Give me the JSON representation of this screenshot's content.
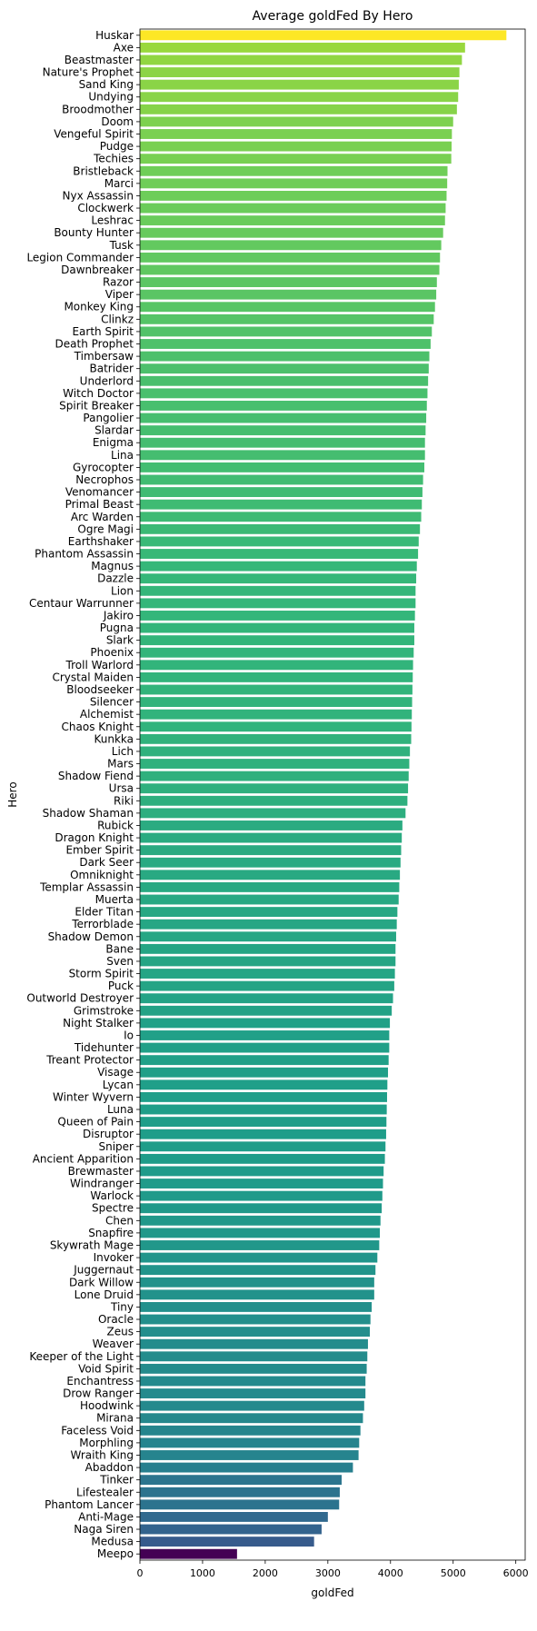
{
  "chart_data": {
    "type": "bar",
    "orientation": "horizontal",
    "title": "Average goldFed By Hero",
    "xlabel": "goldFed",
    "ylabel": "Hero",
    "xlim": [
      0,
      6150
    ],
    "xticks": [
      0,
      1000,
      2000,
      3000,
      4000,
      5000,
      6000
    ],
    "grid": false,
    "colormap": "viridis",
    "categories": [
      "Huskar",
      "Axe",
      "Beastmaster",
      "Nature's Prophet",
      "Sand King",
      "Undying",
      "Broodmother",
      "Doom",
      "Vengeful Spirit",
      "Pudge",
      "Techies",
      "Bristleback",
      "Marci",
      "Nyx Assassin",
      "Clockwerk",
      "Leshrac",
      "Bounty Hunter",
      "Tusk",
      "Legion Commander",
      "Dawnbreaker",
      "Razor",
      "Viper",
      "Monkey King",
      "Clinkz",
      "Earth Spirit",
      "Death Prophet",
      "Timbersaw",
      "Batrider",
      "Underlord",
      "Witch Doctor",
      "Spirit Breaker",
      "Pangolier",
      "Slardar",
      "Enigma",
      "Lina",
      "Gyrocopter",
      "Necrophos",
      "Venomancer",
      "Primal Beast",
      "Arc Warden",
      "Ogre Magi",
      "Earthshaker",
      "Phantom Assassin",
      "Magnus",
      "Dazzle",
      "Lion",
      "Centaur Warrunner",
      "Jakiro",
      "Pugna",
      "Slark",
      "Phoenix",
      "Troll Warlord",
      "Crystal Maiden",
      "Bloodseeker",
      "Silencer",
      "Alchemist",
      "Chaos Knight",
      "Kunkka",
      "Lich",
      "Mars",
      "Shadow Fiend",
      "Ursa",
      "Riki",
      "Shadow Shaman",
      "Rubick",
      "Dragon Knight",
      "Ember Spirit",
      "Dark Seer",
      "Omniknight",
      "Templar Assassin",
      "Muerta",
      "Elder Titan",
      "Terrorblade",
      "Shadow Demon",
      "Bane",
      "Sven",
      "Storm Spirit",
      "Puck",
      "Outworld Destroyer",
      "Grimstroke",
      "Night Stalker",
      "Io",
      "Tidehunter",
      "Treant Protector",
      "Visage",
      "Lycan",
      "Winter Wyvern",
      "Luna",
      "Queen of Pain",
      "Disruptor",
      "Sniper",
      "Ancient Apparition",
      "Brewmaster",
      "Windranger",
      "Warlock",
      "Spectre",
      "Chen",
      "Snapfire",
      "Skywrath Mage",
      "Invoker",
      "Juggernaut",
      "Dark Willow",
      "Lone Druid",
      "Tiny",
      "Oracle",
      "Zeus",
      "Weaver",
      "Keeper of the Light",
      "Void Spirit",
      "Enchantress",
      "Drow Ranger",
      "Hoodwink",
      "Mirana",
      "Faceless Void",
      "Morphling",
      "Wraith King",
      "Abaddon",
      "Tinker",
      "Lifestealer",
      "Phantom Lancer",
      "Anti-Mage",
      "Naga Siren",
      "Medusa",
      "Meepo"
    ],
    "values": [
      5850,
      5190,
      5140,
      5100,
      5090,
      5080,
      5060,
      5000,
      4980,
      4975,
      4970,
      4910,
      4905,
      4895,
      4880,
      4870,
      4840,
      4810,
      4790,
      4780,
      4740,
      4730,
      4710,
      4690,
      4660,
      4640,
      4620,
      4610,
      4600,
      4590,
      4580,
      4570,
      4560,
      4550,
      4550,
      4540,
      4520,
      4510,
      4500,
      4490,
      4470,
      4450,
      4440,
      4420,
      4410,
      4400,
      4400,
      4390,
      4380,
      4380,
      4370,
      4360,
      4355,
      4350,
      4345,
      4340,
      4335,
      4330,
      4310,
      4300,
      4290,
      4280,
      4270,
      4240,
      4190,
      4180,
      4170,
      4160,
      4150,
      4140,
      4130,
      4110,
      4100,
      4090,
      4080,
      4080,
      4070,
      4060,
      4040,
      4020,
      3990,
      3980,
      3980,
      3970,
      3960,
      3950,
      3945,
      3940,
      3935,
      3930,
      3920,
      3910,
      3890,
      3880,
      3870,
      3860,
      3840,
      3830,
      3820,
      3790,
      3760,
      3740,
      3740,
      3700,
      3680,
      3670,
      3640,
      3630,
      3620,
      3600,
      3600,
      3580,
      3560,
      3520,
      3500,
      3490,
      3400,
      3220,
      3190,
      3180,
      3000,
      2900,
      2780,
      1550
    ]
  }
}
